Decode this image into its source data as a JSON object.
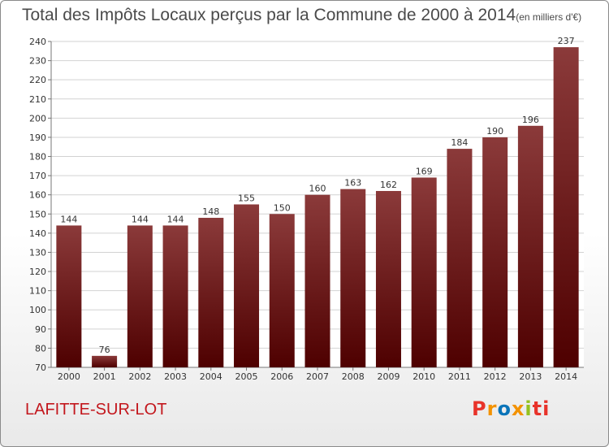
{
  "title": "Total des Impôts Locaux perçus par la Commune de 2000 à 2014",
  "unit": "(en milliers d'€)",
  "commune": "LAFITTE-SUR-LOT",
  "logo": {
    "text": "Proxiti",
    "colors": [
      "#e8332a",
      "#f39200",
      "#0a74b9",
      "#f39200",
      "#95c11f",
      "#e8332a",
      "#e8332a"
    ]
  },
  "colors": {
    "bar_top": "#8b3a3a",
    "bar_bottom": "#4e0000",
    "title": "#4a4a4a",
    "commune": "#c3171d"
  },
  "chart_data": {
    "type": "bar",
    "categories": [
      "2000",
      "2001",
      "2002",
      "2003",
      "2004",
      "2005",
      "2006",
      "2007",
      "2008",
      "2009",
      "2010",
      "2011",
      "2012",
      "2013",
      "2014"
    ],
    "values": [
      144,
      76,
      144,
      144,
      148,
      155,
      150,
      160,
      163,
      162,
      169,
      184,
      190,
      196,
      237
    ],
    "ylim": [
      70,
      240
    ],
    "yticks": [
      70,
      80,
      90,
      100,
      110,
      120,
      130,
      140,
      150,
      160,
      170,
      180,
      190,
      200,
      210,
      220,
      230,
      240
    ],
    "grid": true,
    "data_labels": true
  }
}
